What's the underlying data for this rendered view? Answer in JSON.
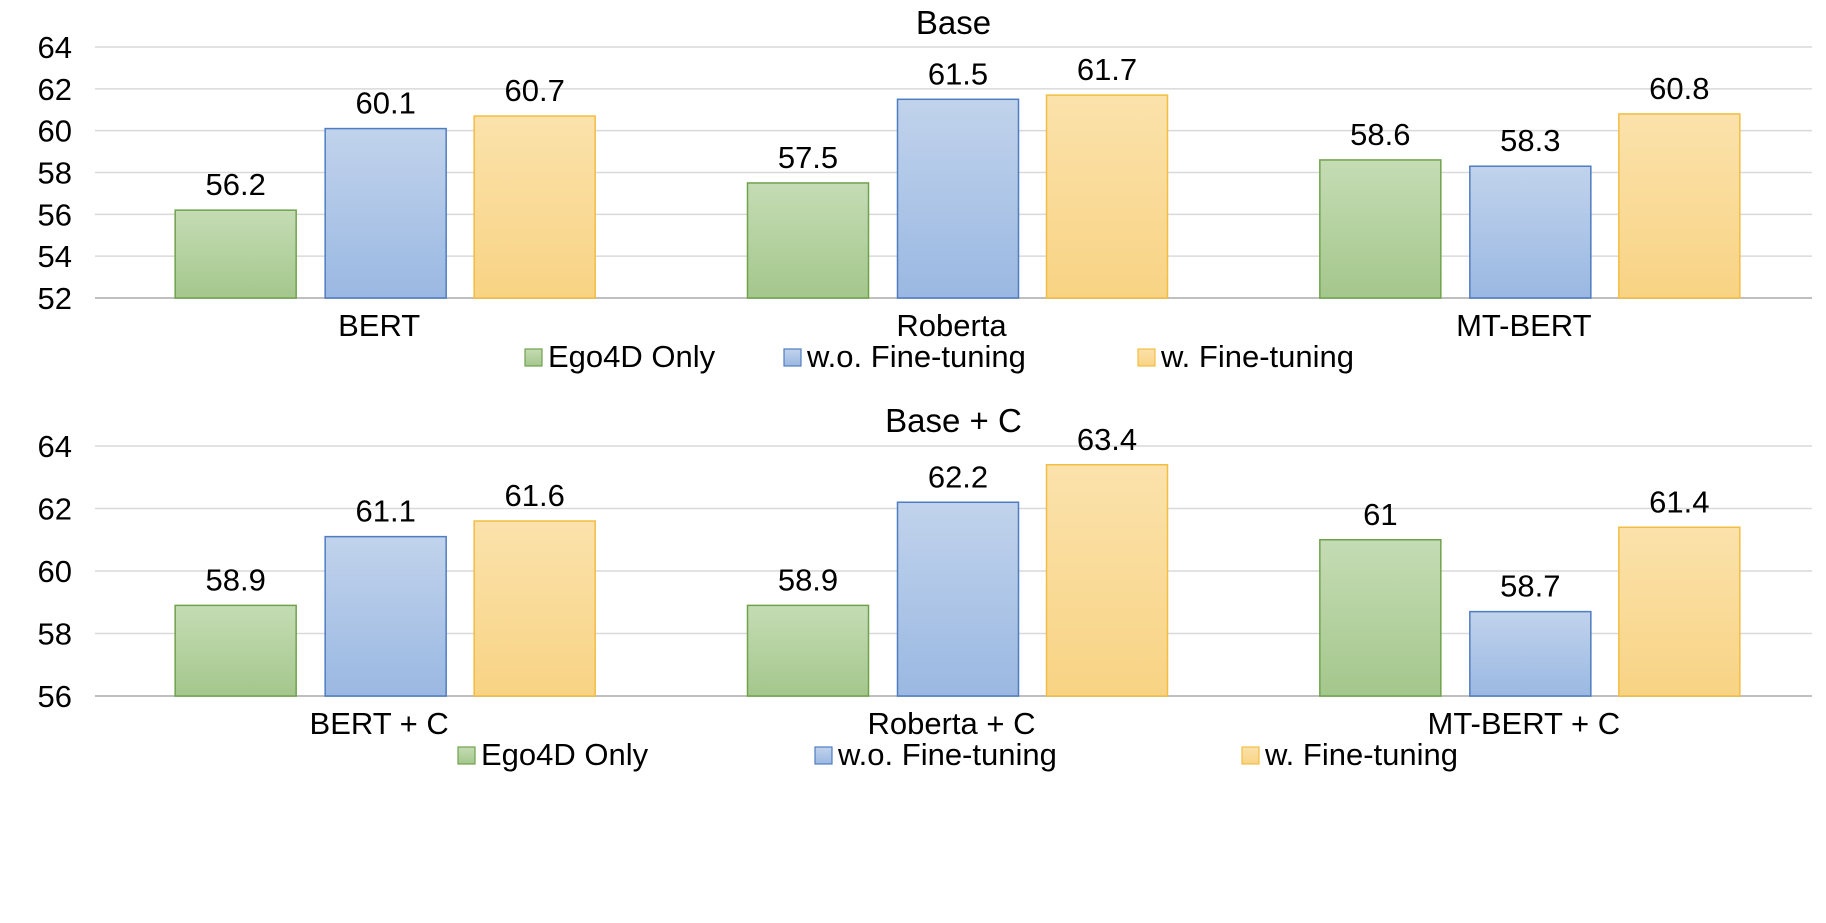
{
  "chart_data": [
    {
      "type": "bar",
      "title": "Base",
      "categories": [
        "BERT",
        "Roberta",
        "MT-BERT"
      ],
      "series": [
        {
          "name": "Ego4D Only",
          "values": [
            56.2,
            57.5,
            58.6
          ]
        },
        {
          "name": "w.o. Fine-tuning",
          "values": [
            60.1,
            61.5,
            58.3
          ]
        },
        {
          "name": "w. Fine-tuning",
          "values": [
            60.7,
            61.7,
            60.8
          ]
        }
      ],
      "ylim": [
        52,
        64
      ],
      "yticks": [
        52,
        54,
        56,
        58,
        60,
        62,
        64
      ],
      "grid": true,
      "legend_position": "bottom"
    },
    {
      "type": "bar",
      "title": "Base + C",
      "categories": [
        "BERT + C",
        "Roberta + C",
        "MT-BERT + C"
      ],
      "series": [
        {
          "name": "Ego4D Only",
          "values": [
            58.9,
            58.9,
            61
          ]
        },
        {
          "name": "w.o. Fine-tuning",
          "values": [
            61.1,
            62.2,
            58.7
          ]
        },
        {
          "name": "w. Fine-tuning",
          "values": [
            61.6,
            63.4,
            61.4
          ]
        }
      ],
      "ylim": [
        56,
        64
      ],
      "yticks": [
        56,
        58,
        60,
        62,
        64
      ],
      "grid": true,
      "legend_position": "bottom"
    }
  ],
  "colors": {
    "series_fill_top": [
      "#c5dcb4",
      "#c1d3ec",
      "#fbe2ab"
    ],
    "series_fill_bottom": [
      "#a4c78c",
      "#9ab8e2",
      "#f8d384"
    ],
    "series_stroke": [
      "#70a24d",
      "#4f7dc1",
      "#f2bd43"
    ],
    "gridline": "#d9d9d9",
    "axis": "#bfbfbf"
  }
}
